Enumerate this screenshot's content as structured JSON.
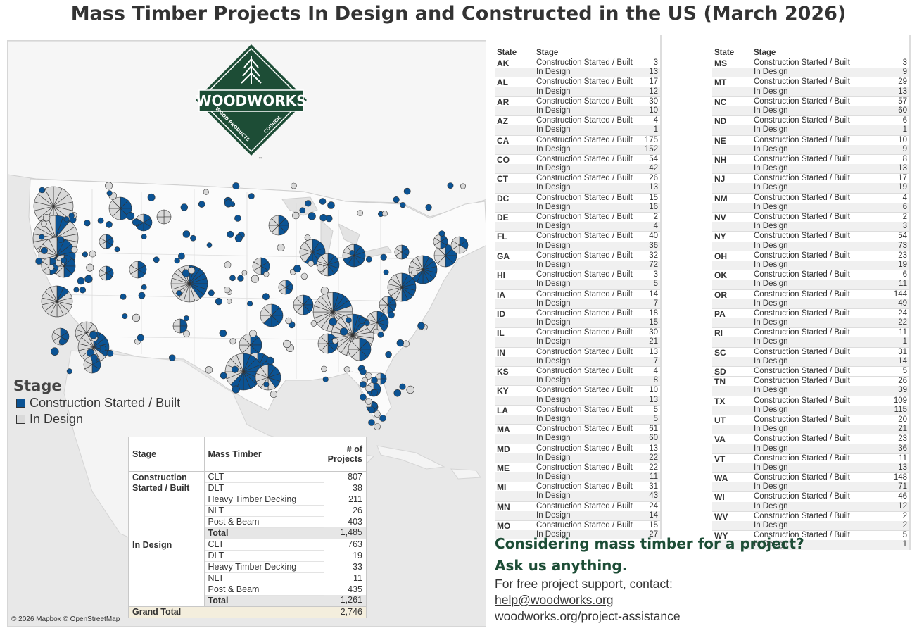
{
  "title": "Mass Timber Projects In Design and Constructed in the US (March 2026)",
  "colors": {
    "built": "#0b5394",
    "design": "#d9d9d9",
    "brand_green": "#1d4d36",
    "map_bg": "#e8e8e8",
    "land": "#fafafa"
  },
  "map": {
    "attribution": "© 2026 Mapbox © OpenStreetMap",
    "logo": {
      "name": "WOODWORKS",
      "subtitle_left": "WOOD PRODUCTS",
      "subtitle_right": "COUNCIL",
      "tm": "™"
    }
  },
  "legend": {
    "title": "Stage",
    "items": [
      {
        "label": "Construction Started / Built",
        "color": "#0b5394"
      },
      {
        "label": "In Design",
        "color": "#d9d9d9"
      }
    ]
  },
  "summary_table": {
    "headers": {
      "stage": "Stage",
      "mass_timber": "Mass Timber",
      "count": "# of Projects"
    },
    "groups": [
      {
        "stage": "Construction Started / Built",
        "rows": [
          {
            "type": "CLT",
            "count": "807"
          },
          {
            "type": "DLT",
            "count": "38"
          },
          {
            "type": "Heavy Timber Decking",
            "count": "211"
          },
          {
            "type": "NLT",
            "count": "26"
          },
          {
            "type": "Post & Beam",
            "count": "403"
          }
        ],
        "total_label": "Total",
        "total": "1,485"
      },
      {
        "stage": "In Design",
        "rows": [
          {
            "type": "CLT",
            "count": "763"
          },
          {
            "type": "DLT",
            "count": "19"
          },
          {
            "type": "Heavy Timber Decking",
            "count": "33"
          },
          {
            "type": "NLT",
            "count": "11"
          },
          {
            "type": "Post & Beam",
            "count": "435"
          }
        ],
        "total_label": "Total",
        "total": "1,261"
      }
    ],
    "grand_total_label": "Grand Total",
    "grand_total": "2,746"
  },
  "state_table": {
    "headers": {
      "state": "State",
      "stage": "Stage"
    },
    "stage_labels": {
      "built": "Construction Started / Built",
      "design": "In Design"
    },
    "left": [
      {
        "state": "AK",
        "built": "3",
        "design": "13"
      },
      {
        "state": "AL",
        "built": "17",
        "design": "12"
      },
      {
        "state": "AR",
        "built": "30",
        "design": "10"
      },
      {
        "state": "AZ",
        "built": "4",
        "design": "1"
      },
      {
        "state": "CA",
        "built": "175",
        "design": "152"
      },
      {
        "state": "CO",
        "built": "54",
        "design": "42"
      },
      {
        "state": "CT",
        "built": "26",
        "design": "13"
      },
      {
        "state": "DC",
        "built": "15",
        "design": "16"
      },
      {
        "state": "DE",
        "built": "2",
        "design": "4"
      },
      {
        "state": "FL",
        "built": "40",
        "design": "36"
      },
      {
        "state": "GA",
        "built": "32",
        "design": "72"
      },
      {
        "state": "HI",
        "built": "3",
        "design": "5"
      },
      {
        "state": "IA",
        "built": "14",
        "design": "7"
      },
      {
        "state": "ID",
        "built": "18",
        "design": "15"
      },
      {
        "state": "IL",
        "built": "30",
        "design": "21"
      },
      {
        "state": "IN",
        "built": "13",
        "design": "7"
      },
      {
        "state": "KS",
        "built": "4",
        "design": "8"
      },
      {
        "state": "KY",
        "built": "10",
        "design": "13"
      },
      {
        "state": "LA",
        "built": "5",
        "design": "5"
      },
      {
        "state": "MA",
        "built": "61",
        "design": "60"
      },
      {
        "state": "MD",
        "built": "13",
        "design": "22"
      },
      {
        "state": "ME",
        "built": "22",
        "design": "11"
      },
      {
        "state": "MI",
        "built": "31",
        "design": "43"
      },
      {
        "state": "MN",
        "built": "24",
        "design": "14"
      },
      {
        "state": "MO",
        "built": "15",
        "design": "27"
      }
    ],
    "right": [
      {
        "state": "MS",
        "built": "3",
        "design": "9"
      },
      {
        "state": "MT",
        "built": "29",
        "design": "13"
      },
      {
        "state": "NC",
        "built": "57",
        "design": "60"
      },
      {
        "state": "ND",
        "built": "6",
        "design": "1"
      },
      {
        "state": "NE",
        "built": "10",
        "design": "9"
      },
      {
        "state": "NH",
        "built": "8",
        "design": "13"
      },
      {
        "state": "NJ",
        "built": "17",
        "design": "19"
      },
      {
        "state": "NM",
        "built": "4",
        "design": "6"
      },
      {
        "state": "NV",
        "built": "2",
        "design": "3"
      },
      {
        "state": "NY",
        "built": "54",
        "design": "73"
      },
      {
        "state": "OH",
        "built": "23",
        "design": "19"
      },
      {
        "state": "OK",
        "built": "6",
        "design": "11"
      },
      {
        "state": "OR",
        "built": "144",
        "design": "49"
      },
      {
        "state": "PA",
        "built": "24",
        "design": "22"
      },
      {
        "state": "RI",
        "built": "11",
        "design": "1"
      },
      {
        "state": "SC",
        "built": "31",
        "design": "14"
      },
      {
        "state": "SD",
        "built": "5",
        "design": null
      },
      {
        "state": "TN",
        "built": "26",
        "design": "39"
      },
      {
        "state": "TX",
        "built": "109",
        "design": "115"
      },
      {
        "state": "UT",
        "built": "20",
        "design": "21"
      },
      {
        "state": "VA",
        "built": "23",
        "design": "36"
      },
      {
        "state": "VT",
        "built": "11",
        "design": "13"
      },
      {
        "state": "WA",
        "built": "148",
        "design": "71"
      },
      {
        "state": "WI",
        "built": "46",
        "design": "12"
      },
      {
        "state": "WV",
        "built": "2",
        "design": "2"
      },
      {
        "state": "WY",
        "built": "5",
        "design": "1"
      }
    ]
  },
  "cta": {
    "headline1": "Considering mass timber for a project?",
    "headline2": "Ask us anything.",
    "line1": "For free project support, contact:",
    "email": "help@woodworks.org",
    "url": "woodworks.org/project-assistance"
  }
}
